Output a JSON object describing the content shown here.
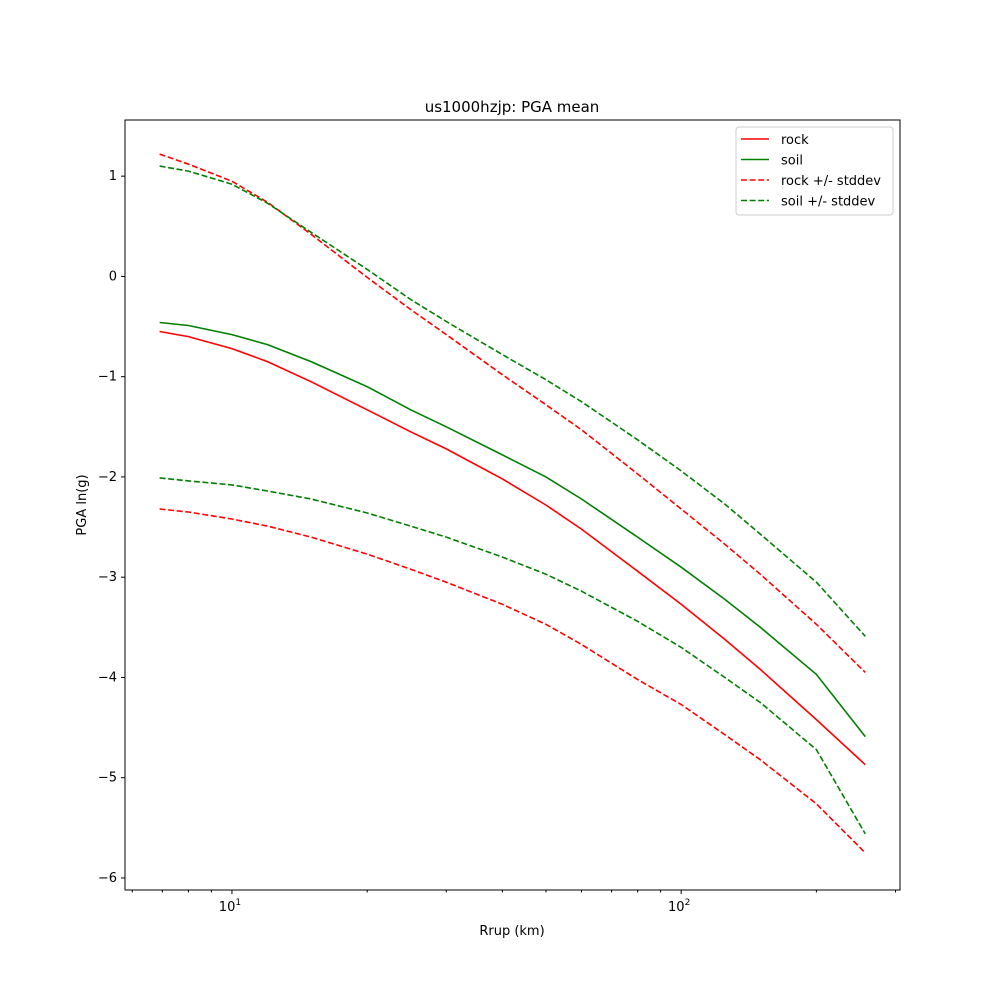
{
  "chart_data": {
    "type": "line",
    "title": "us1000hzjp: PGA mean",
    "xlabel": "Rrup (km)",
    "ylabel": "PGA ln(g)",
    "xscale": "log",
    "xlim": [
      5.78,
      307
    ],
    "ylim": [
      -6.12,
      1.56
    ],
    "xticks": [
      {
        "value": 10,
        "base": "10",
        "exp": "1"
      },
      {
        "value": 100,
        "base": "10",
        "exp": "2"
      }
    ],
    "yticks": [
      1,
      0,
      -1,
      -2,
      -3,
      -4,
      -5,
      -6
    ],
    "ytick_labels": [
      "1",
      "0",
      "−1",
      "−2",
      "−3",
      "−4",
      "−5",
      "−6"
    ],
    "legend_position": "top-right",
    "grid": false,
    "x": [
      6.9,
      8,
      10,
      12,
      15,
      20,
      25,
      30,
      40,
      50,
      60,
      80,
      100,
      125,
      150,
      200,
      257
    ],
    "series": [
      {
        "name": "rock",
        "color": "#ff0000",
        "dash": false,
        "values": [
          -0.55,
          -0.6,
          -0.72,
          -0.85,
          -1.05,
          -1.33,
          -1.55,
          -1.72,
          -2.02,
          -2.28,
          -2.52,
          -2.94,
          -3.27,
          -3.62,
          -3.92,
          -4.42,
          -4.87
        ]
      },
      {
        "name": "soil",
        "color": "#008000",
        "dash": false,
        "values": [
          -0.46,
          -0.49,
          -0.58,
          -0.68,
          -0.85,
          -1.1,
          -1.33,
          -1.5,
          -1.78,
          -2.0,
          -2.22,
          -2.6,
          -2.9,
          -3.22,
          -3.5,
          -3.97,
          -4.59
        ]
      },
      {
        "name": "rock +/- stddev",
        "color": "#ff0000",
        "dash": true,
        "values": [
          1.22,
          1.12,
          0.95,
          0.74,
          0.42,
          -0.01,
          -0.33,
          -0.58,
          -0.98,
          -1.28,
          -1.53,
          -1.97,
          -2.32,
          -2.67,
          -2.97,
          -3.47,
          -3.95
        ],
        "values_lower": [
          -2.32,
          -2.35,
          -2.42,
          -2.49,
          -2.6,
          -2.77,
          -2.92,
          -3.05,
          -3.27,
          -3.47,
          -3.67,
          -4.02,
          -4.27,
          -4.57,
          -4.82,
          -5.26,
          -5.75
        ]
      },
      {
        "name": "soil +/- stddev",
        "color": "#008000",
        "dash": true,
        "values": [
          1.1,
          1.05,
          0.92,
          0.73,
          0.44,
          0.07,
          -0.23,
          -0.45,
          -0.78,
          -1.03,
          -1.25,
          -1.63,
          -1.94,
          -2.27,
          -2.57,
          -3.05,
          -3.59
        ],
        "values_lower": [
          -2.01,
          -2.04,
          -2.08,
          -2.14,
          -2.22,
          -2.36,
          -2.49,
          -2.6,
          -2.8,
          -2.97,
          -3.14,
          -3.44,
          -3.7,
          -4.0,
          -4.25,
          -4.72,
          -5.56
        ]
      }
    ]
  }
}
